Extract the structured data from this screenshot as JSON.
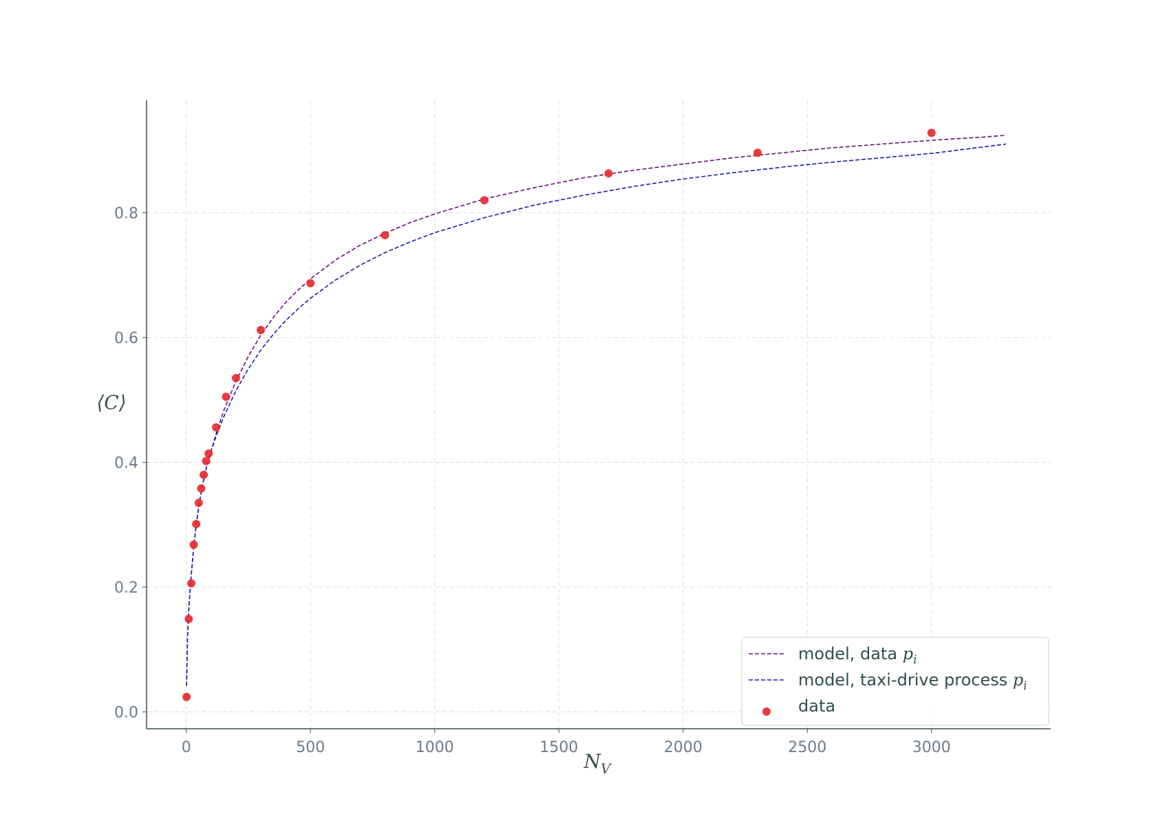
{
  "chart_data": {
    "type": "scatter",
    "title": "",
    "xlabel": {
      "main": "N",
      "sub": "V"
    },
    "ylabel": "⟨C⟩",
    "xlim": [
      -160,
      3480
    ],
    "ylim": [
      -0.027,
      0.98
    ],
    "xticks": [
      0,
      500,
      1000,
      1500,
      2000,
      2500,
      3000
    ],
    "yticks": [
      0.0,
      0.2,
      0.4,
      0.6,
      0.8
    ],
    "grid": true,
    "legend_position": "lower-right",
    "series": [
      {
        "name": "model, data ",
        "name_math": "p",
        "name_sub": "i",
        "kind": "line",
        "style": "dashed",
        "color": "#6a0f7a",
        "x": [
          1,
          5,
          10,
          20,
          30,
          40,
          50,
          60,
          70,
          80,
          90,
          100,
          120,
          150,
          200,
          250,
          300,
          350,
          400,
          450,
          500,
          600,
          700,
          800,
          900,
          1000,
          1200,
          1400,
          1600,
          1800,
          2000,
          2200,
          2400,
          2600,
          2800,
          3000,
          3200,
          3300
        ],
        "y": [
          0.042,
          0.12,
          0.165,
          0.22,
          0.265,
          0.3,
          0.328,
          0.352,
          0.372,
          0.39,
          0.405,
          0.418,
          0.446,
          0.482,
          0.53,
          0.57,
          0.604,
          0.632,
          0.656,
          0.676,
          0.694,
          0.724,
          0.748,
          0.767,
          0.784,
          0.798,
          0.822,
          0.84,
          0.856,
          0.868,
          0.878,
          0.888,
          0.896,
          0.904,
          0.91,
          0.916,
          0.921,
          0.924
        ]
      },
      {
        "name": "model, taxi-drive process ",
        "name_math": "p",
        "name_sub": "i",
        "kind": "line",
        "style": "dashed",
        "color": "#1a1ab0",
        "x": [
          1,
          5,
          10,
          20,
          30,
          40,
          50,
          60,
          70,
          80,
          90,
          100,
          120,
          150,
          200,
          250,
          300,
          350,
          400,
          450,
          500,
          600,
          700,
          800,
          900,
          1000,
          1200,
          1400,
          1600,
          1800,
          2000,
          2200,
          2400,
          2600,
          2800,
          3000,
          3200,
          3300
        ],
        "y": [
          0.042,
          0.12,
          0.165,
          0.22,
          0.265,
          0.3,
          0.328,
          0.352,
          0.372,
          0.39,
          0.405,
          0.418,
          0.442,
          0.472,
          0.515,
          0.55,
          0.58,
          0.605,
          0.627,
          0.646,
          0.663,
          0.692,
          0.716,
          0.736,
          0.753,
          0.768,
          0.792,
          0.812,
          0.828,
          0.842,
          0.854,
          0.864,
          0.873,
          0.881,
          0.888,
          0.895,
          0.905,
          0.91
        ]
      },
      {
        "name": "data",
        "kind": "scatter",
        "color": "#e8262b",
        "x": [
          1,
          10,
          20,
          30,
          40,
          50,
          60,
          70,
          80,
          90,
          120,
          160,
          200,
          300,
          500,
          800,
          1200,
          1700,
          2300,
          3000
        ],
        "y": [
          0.024,
          0.149,
          0.206,
          0.268,
          0.301,
          0.335,
          0.358,
          0.38,
          0.402,
          0.414,
          0.456,
          0.505,
          0.535,
          0.612,
          0.687,
          0.764,
          0.82,
          0.863,
          0.896,
          0.928
        ]
      }
    ]
  }
}
